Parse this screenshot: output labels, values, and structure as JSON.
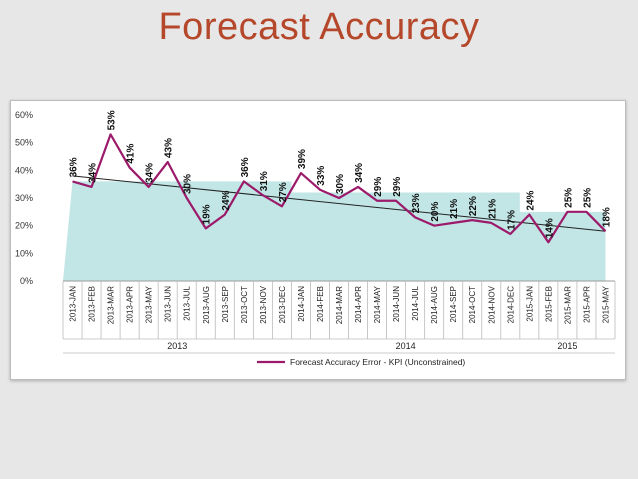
{
  "title": "Forecast Accuracy",
  "chart_data": {
    "type": "line",
    "title": "",
    "xlabel": "",
    "ylabel": "",
    "ylim": [
      0,
      60
    ],
    "y_unit": "%",
    "y_ticks": [
      "0%",
      "10%",
      "20%",
      "30%",
      "40%",
      "50%",
      "60%"
    ],
    "grid": false,
    "categories": [
      "2013-JAN",
      "2013-FEB",
      "2013-MAR",
      "2013-APR",
      "2013-MAY",
      "2013-JUN",
      "2013-JUL",
      "2013-AUG",
      "2013-SEP",
      "2013-OCT",
      "2013-NOV",
      "2013-DEC",
      "2014-JAN",
      "2014-FEB",
      "2014-MAR",
      "2014-APR",
      "2014-MAY",
      "2014-JUN",
      "2014-JUL",
      "2014-AUG",
      "2014-SEP",
      "2014-OCT",
      "2014-NOV",
      "2014-DEC",
      "2015-JAN",
      "2015-FEB",
      "2015-MAR",
      "2015-APR",
      "2015-MAY"
    ],
    "year_groups": [
      {
        "label": "2013",
        "count": 12
      },
      {
        "label": "2014",
        "count": 12
      },
      {
        "label": "2015",
        "count": 5
      }
    ],
    "series": [
      {
        "name": "Forecast Accuracy Error - KPI (Unconstrained)",
        "color": "#9c1a6a",
        "values": [
          36,
          34,
          53,
          41,
          34,
          43,
          30,
          19,
          24,
          36,
          31,
          27,
          39,
          33,
          30,
          34,
          29,
          29,
          23,
          20,
          21,
          22,
          21,
          17,
          24,
          14,
          25,
          25,
          18
        ],
        "labels": [
          "36%",
          "34%",
          "53%",
          "41%",
          "34%",
          "43%",
          "30%",
          "19%",
          "24%",
          "36%",
          "31%",
          "27%",
          "39%",
          "33%",
          "30%",
          "34%",
          "29%",
          "29%",
          "23%",
          "20%",
          "21%",
          "22%",
          "21%",
          "17%",
          "24%",
          "14%",
          "25%",
          "25%",
          "18%"
        ]
      }
    ],
    "band": {
      "color": "#c2e6e6",
      "values": [
        36,
        36,
        36,
        36,
        36,
        36,
        36,
        36,
        36,
        36,
        36,
        36,
        32,
        32,
        32,
        32,
        32,
        32,
        32,
        32,
        32,
        32,
        32,
        32,
        25,
        25,
        25,
        25,
        25
      ]
    },
    "trendline": {
      "color": "#222222",
      "start": 38,
      "end": 18
    },
    "legend_position": "bottom"
  }
}
